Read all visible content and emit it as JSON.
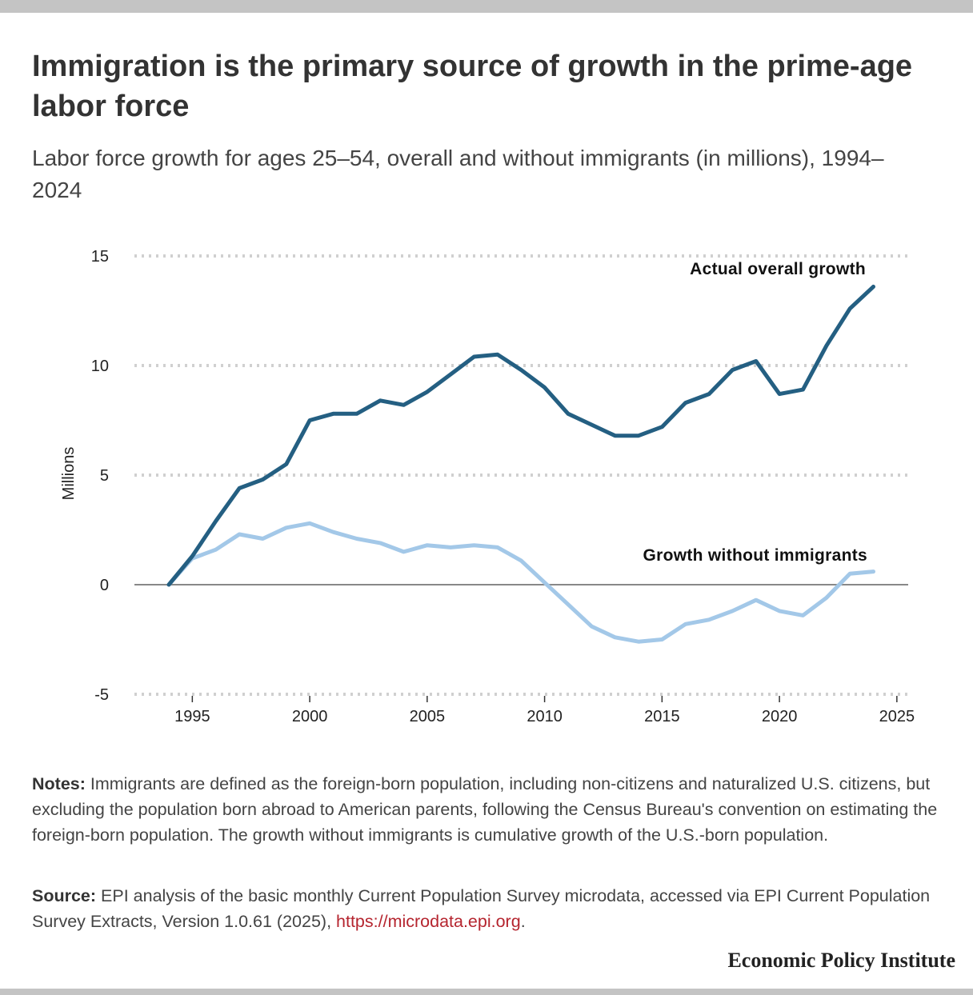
{
  "header": {
    "title": "Immigration is the primary source of growth in the prime-age labor force",
    "subtitle": "Labor force growth for ages 25–54, overall and without immigrants (in millions), 1994–2024"
  },
  "notes": {
    "lead": "Notes:",
    "text": " Immigrants are defined as the foreign-born population, including non-citizens and naturalized U.S. citizens, but excluding the population born abroad to American parents, following the Census Bureau's convention on estimating the foreign-born population. The growth without immigrants is cumulative growth of the U.S.-born population."
  },
  "source": {
    "lead": "Source:",
    "text": " EPI analysis of the basic monthly Current Population Survey microdata, accessed via EPI Current Population Survey Extracts, Version 1.0.61 (2025), ",
    "link": "https://microdata.epi.org",
    "end": "."
  },
  "brand": "Economic Policy Institute",
  "colors": {
    "overall": "#245f82",
    "without": "#a3c8e8",
    "grid": "#d0d0d0",
    "zero": "#888888"
  },
  "chart_data": {
    "type": "line",
    "title": "Immigration is the primary source of growth in the prime-age labor force",
    "ylabel": "Millions",
    "xlabel": "",
    "xlim": [
      1992.5,
      2025.5
    ],
    "ylim": [
      -5,
      15
    ],
    "xticks": [
      1995,
      2000,
      2005,
      2010,
      2015,
      2020,
      2025
    ],
    "yticks": [
      15,
      10,
      5,
      0,
      -5
    ],
    "grid": "horizontal dotted",
    "legend": "direct labels",
    "x": [
      1994,
      1995,
      1996,
      1997,
      1998,
      1999,
      2000,
      2001,
      2002,
      2003,
      2004,
      2005,
      2006,
      2007,
      2008,
      2009,
      2010,
      2011,
      2012,
      2013,
      2014,
      2015,
      2016,
      2017,
      2018,
      2019,
      2020,
      2021,
      2022,
      2023,
      2024
    ],
    "series": [
      {
        "name": "Actual overall growth",
        "values": [
          0,
          1.3,
          2.9,
          4.4,
          4.8,
          5.5,
          7.5,
          7.8,
          7.8,
          8.4,
          8.2,
          8.8,
          9.6,
          10.4,
          10.5,
          9.8,
          9.0,
          7.8,
          7.3,
          6.8,
          6.8,
          7.2,
          8.3,
          8.7,
          9.8,
          10.2,
          8.7,
          8.9,
          10.9,
          12.6,
          13.6
        ]
      },
      {
        "name": "Growth without immigrants",
        "values": [
          0,
          1.2,
          1.6,
          2.3,
          2.1,
          2.6,
          2.8,
          2.4,
          2.1,
          1.9,
          1.5,
          1.8,
          1.7,
          1.8,
          1.7,
          1.1,
          0.1,
          -0.9,
          -1.9,
          -2.4,
          -2.6,
          -2.5,
          -1.8,
          -1.6,
          -1.2,
          -0.7,
          -1.2,
          -1.4,
          -0.6,
          0.5,
          0.6
        ]
      }
    ]
  }
}
